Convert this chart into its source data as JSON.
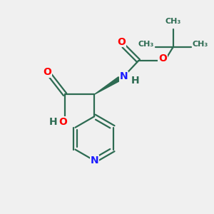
{
  "background_color": "#f0f0f0",
  "bond_color": "#2d6b52",
  "nitrogen_color": "#1a1aff",
  "oxygen_color": "#ff0000",
  "figsize": [
    3.0,
    3.0
  ],
  "dpi": 100,
  "xlim": [
    0,
    10
  ],
  "ylim": [
    0,
    10
  ]
}
